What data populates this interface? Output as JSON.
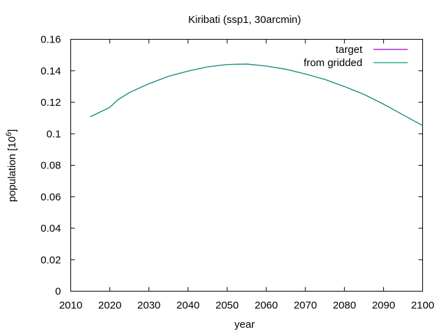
{
  "chart_data": {
    "type": "line",
    "title": "Kiribati (ssp1, 30arcmin)",
    "xlabel": "year",
    "ylabel": "population [10",
    "ylabel_exponent": "6",
    "ylabel_suffix": "]",
    "xlim": [
      2010,
      2100
    ],
    "ylim": [
      0,
      0.16
    ],
    "x_ticks": [
      "2010",
      "2020",
      "2030",
      "2040",
      "2050",
      "2060",
      "2070",
      "2080",
      "2090",
      "2100"
    ],
    "y_ticks": [
      "0",
      "0.02",
      "0.04",
      "0.06",
      "0.08",
      "0.1",
      "0.12",
      "0.14",
      "0.16"
    ],
    "legend_position": "top-right",
    "grid": false,
    "series": [
      {
        "name": "target",
        "color": "#9400d3",
        "x": [
          2015,
          2020,
          2022,
          2025,
          2030,
          2035,
          2040,
          2045,
          2050,
          2055,
          2060,
          2065,
          2070,
          2075,
          2080,
          2085,
          2090,
          2095,
          2100
        ],
        "y": [
          0.1108,
          0.1168,
          0.1215,
          0.1262,
          0.1318,
          0.1365,
          0.1398,
          0.1425,
          0.144,
          0.1443,
          0.143,
          0.141,
          0.138,
          0.1345,
          0.13,
          0.125,
          0.1188,
          0.112,
          0.1052
        ]
      },
      {
        "name": "from gridded",
        "color": "#009e73",
        "x": [
          2015,
          2020,
          2022,
          2025,
          2030,
          2035,
          2040,
          2045,
          2050,
          2055,
          2060,
          2065,
          2070,
          2075,
          2080,
          2085,
          2090,
          2095,
          2100
        ],
        "y": [
          0.1108,
          0.1168,
          0.1215,
          0.1262,
          0.1318,
          0.1365,
          0.1398,
          0.1425,
          0.144,
          0.1443,
          0.143,
          0.141,
          0.138,
          0.1345,
          0.13,
          0.125,
          0.1188,
          0.112,
          0.1052
        ]
      }
    ]
  }
}
